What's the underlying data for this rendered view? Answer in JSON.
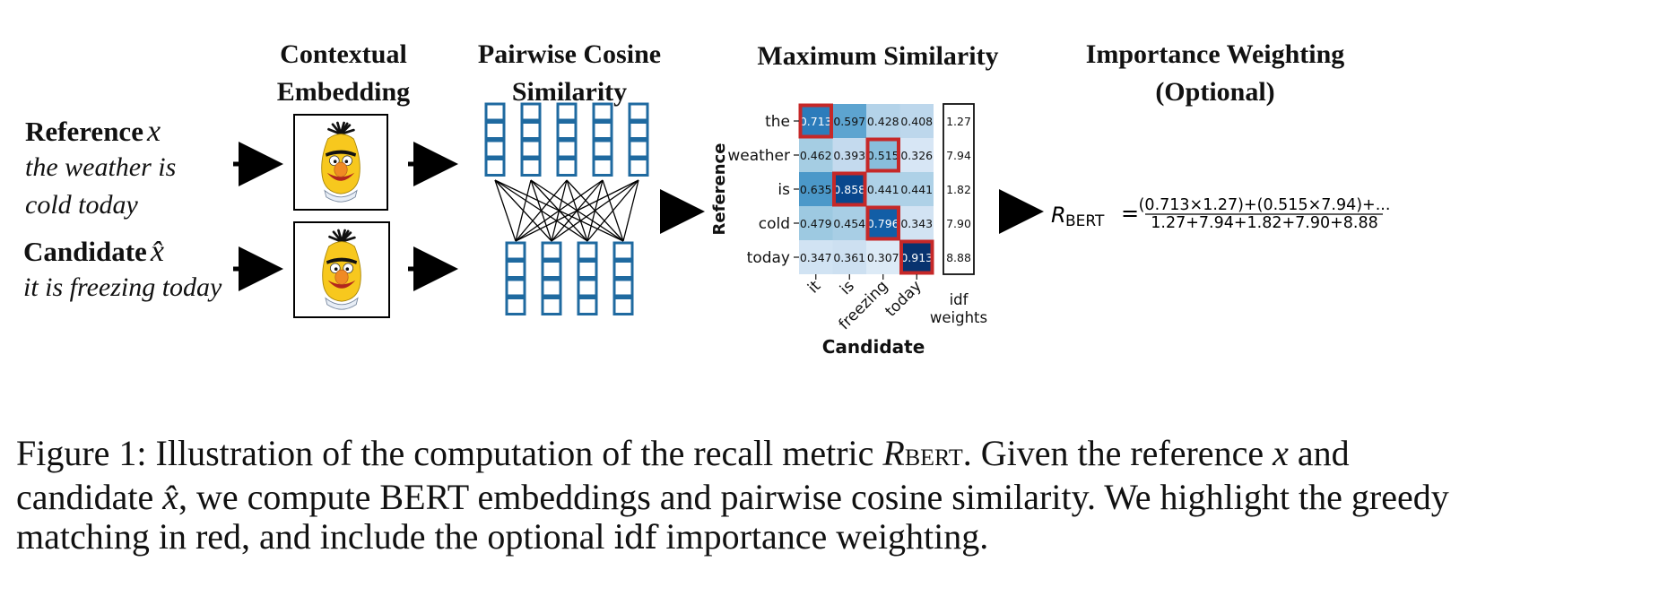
{
  "headers": {
    "contextual": [
      "Contextual",
      "Embedding"
    ],
    "pairwise": [
      "Pairwise Cosine",
      "Similarity"
    ],
    "maxsim": "Maximum Similarity",
    "importance": [
      "Importance Weighting",
      "(Optional)"
    ]
  },
  "inputs": {
    "reference_label": "Reference",
    "reference_symbol": "x",
    "reference_text": [
      "the weather is",
      "cold today"
    ],
    "candidate_label": "Candidate",
    "candidate_symbol": "x̂",
    "candidate_text": "it is freezing today"
  },
  "heatmap": {
    "rows": [
      "the",
      "weather",
      "is",
      "cold",
      "today"
    ],
    "cols": [
      "it",
      "is",
      "freezing",
      "today"
    ],
    "values": [
      [
        "0.713",
        "0.597",
        "0.428",
        "0.408"
      ],
      [
        "0.462",
        "0.393",
        "0.515",
        "0.326"
      ],
      [
        "0.635",
        "0.858",
        "0.441",
        "0.441"
      ],
      [
        "0.479",
        "0.454",
        "0.796",
        "0.343"
      ],
      [
        "0.347",
        "0.361",
        "0.307",
        "0.913"
      ]
    ],
    "highlight_cols": [
      0,
      2,
      1,
      2,
      3
    ],
    "highlight_color": "#c62828",
    "idf": [
      "1.27",
      "7.94",
      "1.82",
      "7.90",
      "8.88"
    ],
    "idf_label": [
      "idf",
      "weights"
    ],
    "ylabel": "Reference",
    "xlabel": "Candidate"
  },
  "formula": {
    "lhs": "R",
    "lhs_sub": "BERT",
    "eq": "=",
    "numerator": "(0.713×1.27)+(0.515×7.94)+...",
    "denominator": "1.27+7.94+1.82+7.90+8.88"
  },
  "caption": {
    "line1_pre": "Figure 1:  Illustration of the computation of the recall metric ",
    "metric": "R",
    "metric_sub": "BERT",
    "line1_post": ".  Given the reference ",
    "ref_sym": "x",
    "line1_end": " and",
    "line2_pre": "candidate ",
    "cand_sym": "x̂",
    "line2_post": ", we compute BERT embeddings and pairwise cosine similarity. We highlight the greedy",
    "line3_pre": "matching in red, and include the optional ",
    "idf_word": "idf",
    "line3_post": " importance weighting."
  },
  "colors": {
    "network_blue": "#1f6aa0",
    "arrow": "#000000",
    "highlight_red": "#c62828"
  },
  "icons": [
    "arrow-right-icon",
    "bert-muppet-icon"
  ]
}
